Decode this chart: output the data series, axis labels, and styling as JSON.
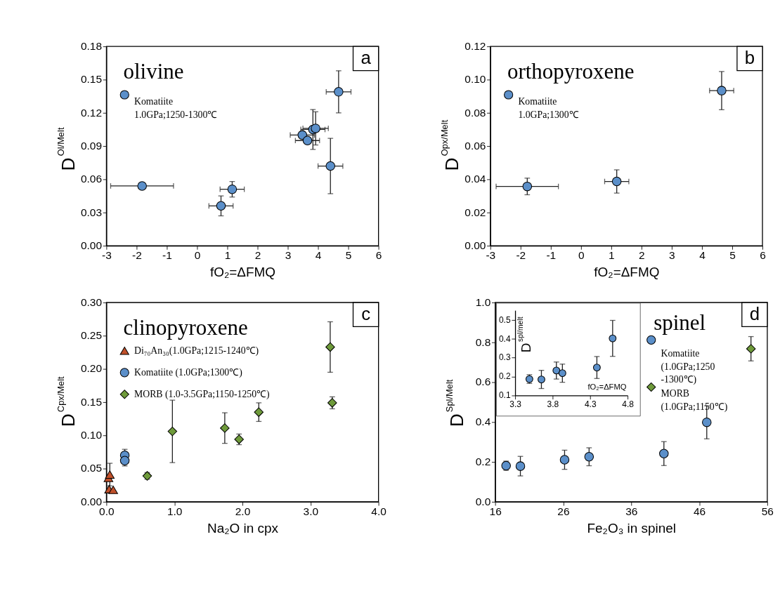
{
  "chart_data": [
    {
      "type": "scatter",
      "title": "olivine",
      "annotations": [
        "a"
      ],
      "xlabel": "fO₂=ΔFMQ",
      "ylabel": "D$^{Ol/Melt}$",
      "xlim": [
        -3,
        6
      ],
      "xticks": [
        -3,
        -2,
        -1,
        0,
        1,
        2,
        3,
        4,
        5,
        6
      ],
      "ylim": [
        0,
        0.18
      ],
      "yticks": [
        {
          "value": 0,
          "label": "0.00"
        },
        {
          "value": 0.03,
          "label": "0.03"
        },
        {
          "value": 0.06,
          "label": "0.06"
        },
        {
          "value": 0.09,
          "label": "0.09"
        },
        {
          "value": 0.12,
          "label": "0.12"
        },
        {
          "value": 0.15,
          "label": "0.15"
        },
        {
          "value": 0.18,
          "label": "0.18"
        }
      ],
      "legend": "top left",
      "series": [
        {
          "name": "Komatiite\n1.0GPa;1250-1300℃",
          "color": "#5b8fc9",
          "marker": "circle",
          "x": [
            -1.82,
            0.79,
            1.16,
            3.48,
            3.65,
            3.83,
            3.92,
            4.41,
            4.68
          ],
          "values": [
            0.054,
            0.036,
            0.051,
            0.1,
            0.095,
            0.105,
            0.106,
            0.072,
            0.139
          ],
          "errors": [
            null,
            0.009,
            0.007,
            null,
            0.003,
            0.018,
            0.015,
            0.025,
            0.019
          ],
          "xerrors": [
            1.04,
            0.4,
            0.4,
            0.4,
            0.4,
            0.4,
            0.42,
            0.41,
            0.41
          ]
        }
      ]
    },
    {
      "type": "scatter",
      "title": "orthopyroxene",
      "annotations": [
        "b"
      ],
      "xlabel": "fO₂=ΔFMQ",
      "ylabel": "D$^{Opx/Melt}$",
      "xlim": [
        -3,
        6
      ],
      "xticks": [
        -3,
        -2,
        -1,
        0,
        1,
        2,
        3,
        4,
        5,
        6
      ],
      "ylim": [
        0,
        0.12
      ],
      "yticks": [
        {
          "value": 0,
          "label": "0.00"
        },
        {
          "value": 0.02,
          "label": "0.02"
        },
        {
          "value": 0.04,
          "label": "0.04"
        },
        {
          "value": 0.06,
          "label": "0.06"
        },
        {
          "value": 0.08,
          "label": "0.08"
        },
        {
          "value": 0.1,
          "label": "0.10"
        },
        {
          "value": 0.12,
          "label": "0.12"
        }
      ],
      "legend": "top left",
      "series": [
        {
          "name": "Komatiite\n1.0GPa;1300℃",
          "color": "#5b8fc9",
          "marker": "circle",
          "x": [
            -1.78,
            1.18,
            4.65
          ],
          "values": [
            0.0357,
            0.0387,
            0.0934
          ],
          "errors": [
            0.005,
            0.007,
            0.0115
          ],
          "xerrors": [
            1.03,
            0.4,
            0.4
          ]
        }
      ]
    },
    {
      "type": "scatter",
      "title": "clinopyroxene",
      "annotations": [
        "c"
      ],
      "xlabel": "Na₂O in cpx",
      "ylabel": "D$^{Cpx/Melt}$",
      "xlim": [
        0,
        4
      ],
      "xticks": [
        {
          "value": 0,
          "label": "0.0"
        },
        {
          "value": 1,
          "label": "1.0"
        },
        {
          "value": 2,
          "label": "2.0"
        },
        {
          "value": 3,
          "label": "3.0"
        },
        {
          "value": 4,
          "label": "4.0"
        }
      ],
      "ylim": [
        0,
        0.3
      ],
      "yticks": [
        {
          "value": 0,
          "label": "0.00"
        },
        {
          "value": 0.05,
          "label": "0.05"
        },
        {
          "value": 0.1,
          "label": "0.10"
        },
        {
          "value": 0.15,
          "label": "0.15"
        },
        {
          "value": 0.2,
          "label": "0.20"
        },
        {
          "value": 0.25,
          "label": "0.25"
        },
        {
          "value": 0.3,
          "label": "0.30"
        }
      ],
      "legend": "top left",
      "series": [
        {
          "name": "Di₇₀An₃₀(1.0GPa;1215-1240℃)",
          "color": "#c0502a",
          "marker": "triangle",
          "x": [
            0.03,
            0.05,
            0.04,
            0.1
          ],
          "values": [
            0.036,
            0.041,
            0.019,
            0.018
          ],
          "errors": [
            null,
            0.017,
            null,
            null
          ]
        },
        {
          "name": "Komatiite (1.0GPa;1300℃)",
          "color": "#5b8fc9",
          "marker": "circle",
          "x": [
            0.27,
            0.27
          ],
          "values": [
            0.07,
            0.062
          ],
          "errors": [
            0.009,
            0.008
          ]
        },
        {
          "name": "MORB (1.0-3.5GPa;1150-1250℃)",
          "color": "#6e9a3a",
          "marker": "diamond",
          "x": [
            0.6,
            0.97,
            1.74,
            1.95,
            2.24,
            3.29,
            3.32
          ],
          "values": [
            0.039,
            0.106,
            0.111,
            0.094,
            0.135,
            0.233,
            0.149
          ],
          "errors": [
            0.005,
            0.047,
            0.023,
            0.008,
            0.014,
            0.038,
            0.009
          ]
        }
      ]
    },
    {
      "type": "scatter",
      "title": "spinel",
      "annotations": [
        "d"
      ],
      "xlabel": "Fe₂O₃ in spinel",
      "ylabel": "D$^{Spl/Melt}$",
      "xlim": [
        16,
        56
      ],
      "xticks": [
        16,
        26,
        36,
        46,
        56
      ],
      "ylim": [
        0,
        1
      ],
      "yticks": [
        {
          "value": 0,
          "label": "0.0"
        },
        {
          "value": 0.2,
          "label": "0.2"
        },
        {
          "value": 0.4,
          "label": "0.4"
        },
        {
          "value": 0.6,
          "label": "0.6"
        },
        {
          "value": 0.8,
          "label": "0.8"
        },
        {
          "value": 1,
          "label": "1.0"
        }
      ],
      "legend": "top right",
      "series": [
        {
          "name": "Komatiite\n(1.0GPa;1250\n-1300℃)",
          "color": "#5b8fc9",
          "marker": "circle",
          "x": [
            17.6,
            19.7,
            26.2,
            29.8,
            40.8,
            47.1
          ],
          "values": [
            0.181,
            0.179,
            0.211,
            0.226,
            0.242,
            0.399
          ],
          "errors": [
            0.023,
            0.049,
            0.048,
            0.045,
            0.06,
            0.083
          ]
        },
        {
          "name": "MORB\n(1.0GPa;1150℃)",
          "color": "#6e9a3a",
          "marker": "diamond",
          "x": [
            53.6
          ],
          "values": [
            0.768
          ],
          "errors": [
            0.061
          ]
        }
      ]
    },
    {
      "type": "scatter",
      "xlabel": "fO₂=ΔFMQ",
      "ylabel": "D$^{spl/melt}$",
      "xlim": [
        3.3,
        4.8
      ],
      "xticks": [
        3.3,
        3.8,
        4.3,
        4.8
      ],
      "ylim": [
        0.1,
        0.55
      ],
      "yticks": [
        0.1,
        0.2,
        0.3,
        0.4,
        0.5
      ],
      "series": [
        {
          "color": "#5b8fc9",
          "marker": "circle",
          "x": [
            3.49,
            3.65,
            3.85,
            3.93,
            4.39,
            4.6
          ],
          "values": [
            0.187,
            0.185,
            0.232,
            0.218,
            0.248,
            0.402
          ],
          "errors": [
            0.023,
            0.048,
            0.045,
            0.048,
            0.058,
            0.095
          ]
        }
      ]
    }
  ]
}
